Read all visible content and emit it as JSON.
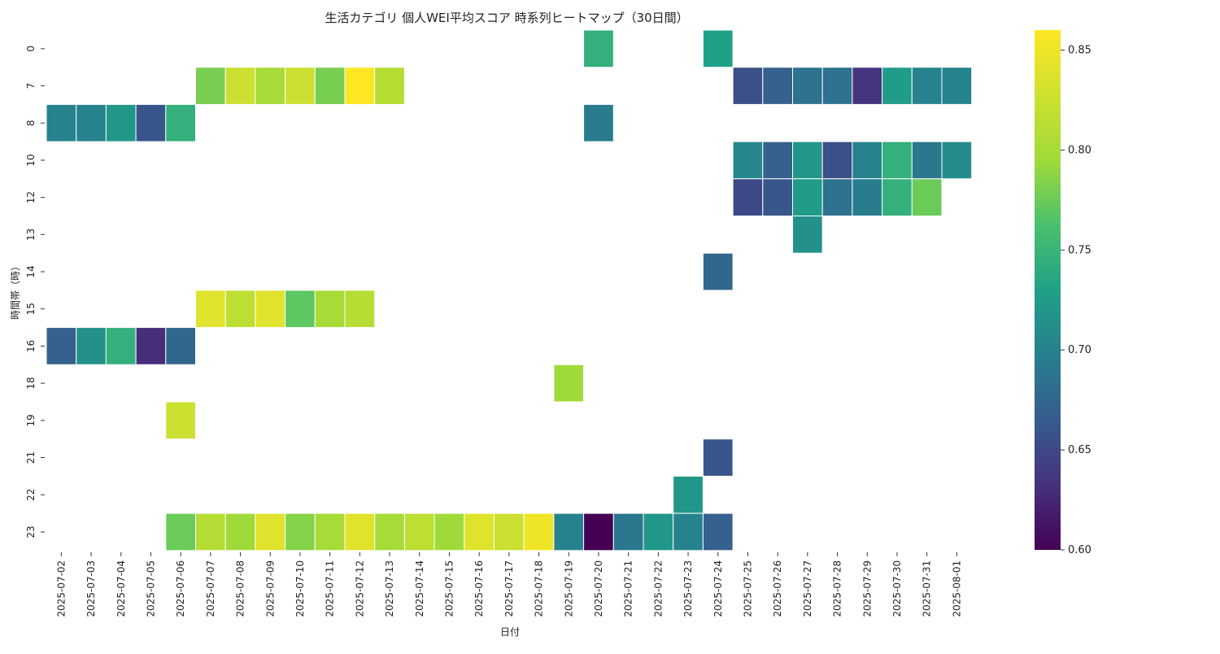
{
  "chart_data": {
    "type": "heatmap",
    "title": "生活カテゴリ 個人WEI平均スコア 時系列ヒートマップ（30日間）",
    "xlabel": "日付",
    "ylabel": "時間帯（時）",
    "x": [
      "2025-07-02",
      "2025-07-03",
      "2025-07-04",
      "2025-07-05",
      "2025-07-06",
      "2025-07-07",
      "2025-07-08",
      "2025-07-09",
      "2025-07-10",
      "2025-07-11",
      "2025-07-12",
      "2025-07-13",
      "2025-07-14",
      "2025-07-15",
      "2025-07-16",
      "2025-07-17",
      "2025-07-18",
      "2025-07-19",
      "2025-07-20",
      "2025-07-21",
      "2025-07-22",
      "2025-07-23",
      "2025-07-24",
      "2025-07-25",
      "2025-07-26",
      "2025-07-27",
      "2025-07-28",
      "2025-07-29",
      "2025-07-30",
      "2025-07-31",
      "2025-08-01"
    ],
    "y": [
      "0",
      "7",
      "8",
      "10",
      "12",
      "13",
      "14",
      "15",
      "16",
      "18",
      "19",
      "21",
      "22",
      "23"
    ],
    "colormap": "viridis",
    "zlim": [
      0.6,
      0.86
    ],
    "colorbar_ticks": [
      "0.60",
      "0.65",
      "0.70",
      "0.75",
      "0.80",
      "0.85"
    ],
    "values": [
      [
        null,
        null,
        null,
        null,
        null,
        null,
        null,
        null,
        null,
        null,
        null,
        null,
        null,
        null,
        null,
        null,
        null,
        null,
        0.745,
        null,
        null,
        null,
        0.73,
        null,
        null,
        null,
        null,
        null,
        null,
        null,
        null
      ],
      [
        null,
        null,
        null,
        null,
        null,
        0.78,
        0.825,
        0.8,
        0.825,
        0.78,
        0.86,
        0.81,
        null,
        null,
        null,
        null,
        null,
        null,
        null,
        null,
        null,
        null,
        null,
        0.655,
        0.67,
        0.685,
        0.685,
        0.635,
        0.725,
        0.7,
        0.7
      ],
      [
        0.7,
        0.7,
        0.72,
        0.66,
        0.745,
        null,
        null,
        null,
        null,
        null,
        null,
        null,
        null,
        null,
        null,
        null,
        null,
        null,
        0.695,
        null,
        null,
        null,
        null,
        null,
        null,
        null,
        null,
        null,
        null,
        null,
        null
      ],
      [
        null,
        null,
        null,
        null,
        null,
        null,
        null,
        null,
        null,
        null,
        null,
        null,
        null,
        null,
        null,
        null,
        null,
        null,
        null,
        null,
        null,
        null,
        null,
        0.705,
        0.67,
        0.72,
        0.655,
        0.7,
        0.745,
        0.69,
        0.71
      ],
      [
        null,
        null,
        null,
        null,
        null,
        null,
        null,
        null,
        null,
        null,
        null,
        null,
        null,
        null,
        null,
        null,
        null,
        null,
        null,
        null,
        null,
        null,
        null,
        0.65,
        0.66,
        0.725,
        0.685,
        0.695,
        0.745,
        0.775,
        null
      ],
      [
        null,
        null,
        null,
        null,
        null,
        null,
        null,
        null,
        null,
        null,
        null,
        null,
        null,
        null,
        null,
        null,
        null,
        null,
        null,
        null,
        null,
        null,
        null,
        null,
        null,
        0.715,
        null,
        null,
        null,
        null,
        null
      ],
      [
        null,
        null,
        null,
        null,
        null,
        null,
        null,
        null,
        null,
        null,
        null,
        null,
        null,
        null,
        null,
        null,
        null,
        null,
        null,
        null,
        null,
        null,
        0.675,
        null,
        null,
        null,
        null,
        null,
        null,
        null,
        null
      ],
      [
        null,
        null,
        null,
        null,
        null,
        0.84,
        0.815,
        0.84,
        0.77,
        0.8,
        0.81,
        null,
        null,
        null,
        null,
        null,
        null,
        null,
        null,
        null,
        null,
        null,
        null,
        null,
        null,
        null,
        null,
        null,
        null,
        null,
        null
      ],
      [
        0.67,
        0.715,
        0.745,
        0.63,
        0.675,
        null,
        null,
        null,
        null,
        null,
        null,
        null,
        null,
        null,
        null,
        null,
        null,
        null,
        null,
        null,
        null,
        null,
        null,
        null,
        null,
        null,
        null,
        null,
        null,
        null,
        null
      ],
      [
        null,
        null,
        null,
        null,
        null,
        null,
        null,
        null,
        null,
        null,
        null,
        null,
        null,
        null,
        null,
        null,
        null,
        0.795,
        null,
        null,
        null,
        null,
        null,
        null,
        null,
        null,
        null,
        null,
        null,
        null,
        null
      ],
      [
        null,
        null,
        null,
        null,
        0.825,
        null,
        null,
        null,
        null,
        null,
        null,
        null,
        null,
        null,
        null,
        null,
        null,
        null,
        null,
        null,
        null,
        null,
        null,
        null,
        null,
        null,
        null,
        null,
        null,
        null,
        null
      ],
      [
        null,
        null,
        null,
        null,
        null,
        null,
        null,
        null,
        null,
        null,
        null,
        null,
        null,
        null,
        null,
        null,
        null,
        null,
        null,
        null,
        null,
        null,
        0.66,
        null,
        null,
        null,
        null,
        null,
        null,
        null,
        null
      ],
      [
        null,
        null,
        null,
        null,
        null,
        null,
        null,
        null,
        null,
        null,
        null,
        null,
        null,
        null,
        null,
        null,
        null,
        null,
        null,
        null,
        null,
        0.72,
        null,
        null,
        null,
        null,
        null,
        null,
        null,
        null,
        null
      ],
      [
        null,
        null,
        null,
        null,
        0.775,
        0.81,
        0.795,
        0.84,
        0.785,
        0.8,
        0.84,
        0.8,
        0.815,
        0.795,
        0.84,
        0.825,
        0.85,
        0.7,
        0.6,
        0.69,
        0.72,
        0.7,
        0.67,
        null,
        null,
        null,
        null,
        null,
        null,
        null,
        null
      ]
    ]
  }
}
